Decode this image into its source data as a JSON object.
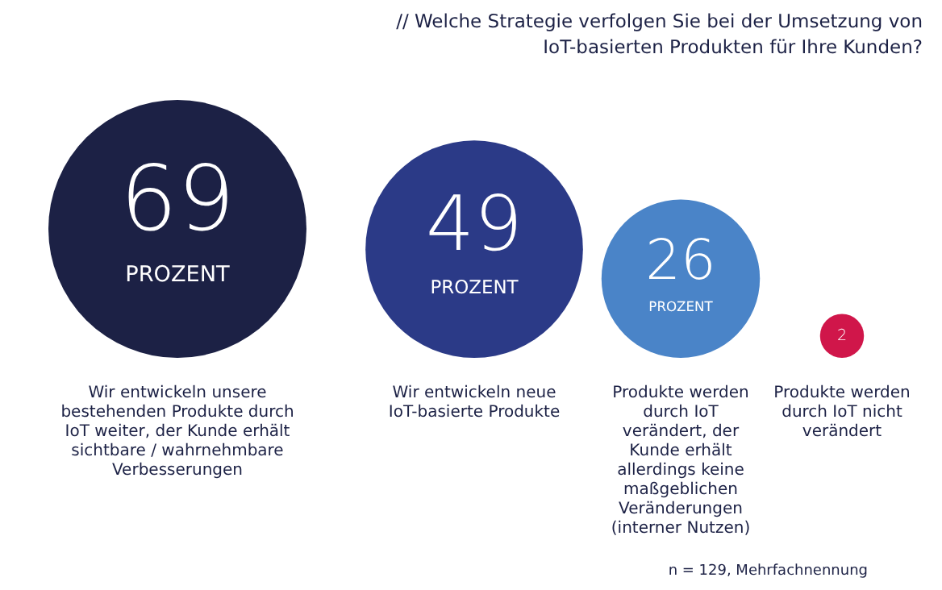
{
  "chart_data": {
    "type": "other",
    "title": "// Welche Strategie verfolgen Sie bei der Umsetzung von IoT-basierten Produkten für Ihre Kunden?",
    "categories": [
      "Wir entwickeln unsere bestehenden Produkte durch IoT weiter, der Kunde erhält sichtbare / wahrnehmbare Verbesserungen",
      "Wir entwickeln neue IoT-basierte Produkte",
      "Produkte werden durch IoT verändert, der Kunde erhält allerdings keine maßgeblichen Veränderungen (interner Nutzen)",
      "Produkte werden durch IoT nicht verändert"
    ],
    "values": [
      69,
      49,
      26,
      2
    ],
    "colors": [
      "#1c2145",
      "#2b3a87",
      "#4a84c8",
      "#d0164a"
    ],
    "value_labels": [
      "69 PROZENT",
      "49 PROZENT",
      "26 PROZENT",
      "2"
    ],
    "annotations": [
      "n = 129, Mehrfachnennung"
    ]
  }
}
